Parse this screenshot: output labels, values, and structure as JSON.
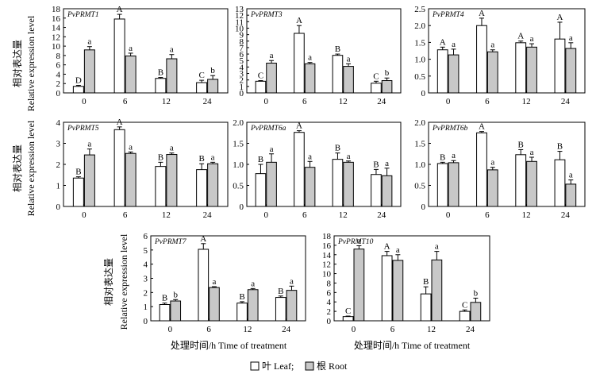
{
  "chart_data": [
    {
      "type": "bar",
      "gene": "PvPRMT1",
      "categories": [
        "0",
        "6",
        "12",
        "24"
      ],
      "yticks": [
        "0",
        "2",
        "4",
        "6",
        "8",
        "10",
        "12",
        "14",
        "16",
        "18"
      ],
      "ylim": [
        0,
        18
      ],
      "series": [
        {
          "name": "叶 Leaf",
          "values": [
            1.4,
            15.8,
            3.1,
            2.2
          ],
          "errors": [
            0.2,
            1.0,
            0.2,
            0.5
          ],
          "letters": [
            "D",
            "A",
            "B",
            "C"
          ]
        },
        {
          "name": "根 Root",
          "values": [
            9.2,
            7.9,
            7.3,
            2.9
          ],
          "errors": [
            0.7,
            0.6,
            0.9,
            0.8
          ],
          "letters": [
            "a",
            "a",
            "a",
            "b"
          ]
        }
      ]
    },
    {
      "type": "bar",
      "gene": "PvPRMT3",
      "categories": [
        "0",
        "6",
        "12",
        "24"
      ],
      "yticks": [
        "0",
        "1",
        "2",
        "3",
        "4",
        "5",
        "6",
        "7",
        "8",
        "9",
        "10",
        "11",
        "12",
        "13"
      ],
      "ylim": [
        0,
        13
      ],
      "series": [
        {
          "name": "叶 Leaf",
          "values": [
            1.8,
            9.2,
            5.8,
            1.5
          ],
          "errors": [
            0.1,
            1.2,
            0.2,
            0.3
          ],
          "letters": [
            "C",
            "A",
            "B",
            "C"
          ]
        },
        {
          "name": "根 Root",
          "values": [
            4.6,
            4.5,
            4.1,
            1.9
          ],
          "errors": [
            0.4,
            0.2,
            0.4,
            0.4
          ],
          "letters": [
            "a",
            "a",
            "a",
            "b"
          ]
        }
      ]
    },
    {
      "type": "bar",
      "gene": "PvPRMT4",
      "categories": [
        "0",
        "6",
        "12",
        "24"
      ],
      "yticks": [
        "0",
        "0.5",
        "1.0",
        "1.5",
        "2.0",
        "2.5"
      ],
      "ylim": [
        0,
        2.5
      ],
      "series": [
        {
          "name": "叶 Leaf",
          "values": [
            1.28,
            2.0,
            1.49,
            1.6
          ],
          "errors": [
            0.08,
            0.22,
            0.05,
            0.5
          ],
          "letters": [
            "A",
            "A",
            "A",
            "A"
          ]
        },
        {
          "name": "根 Root",
          "values": [
            1.13,
            1.22,
            1.36,
            1.32
          ],
          "errors": [
            0.17,
            0.06,
            0.1,
            0.17
          ],
          "letters": [
            "a",
            "a",
            "a",
            "a"
          ]
        }
      ]
    },
    {
      "type": "bar",
      "gene": "PvPRMT5",
      "categories": [
        "0",
        "6",
        "12",
        "24"
      ],
      "yticks": [
        "0",
        "1",
        "2",
        "3",
        "4"
      ],
      "ylim": [
        0,
        4
      ],
      "series": [
        {
          "name": "叶 Leaf",
          "values": [
            1.35,
            3.65,
            1.9,
            1.75
          ],
          "errors": [
            0.06,
            0.13,
            0.2,
            0.28
          ],
          "letters": [
            "B",
            "A",
            "B",
            "B"
          ]
        },
        {
          "name": "根 Root",
          "values": [
            2.45,
            2.52,
            2.47,
            2.03
          ],
          "errors": [
            0.28,
            0.07,
            0.07,
            0.07
          ],
          "letters": [
            "a",
            "a",
            "a",
            "a"
          ]
        }
      ]
    },
    {
      "type": "bar",
      "gene": "PvPRMT6a",
      "categories": [
        "0",
        "6",
        "12",
        "24"
      ],
      "yticks": [
        "0",
        "0.5",
        "1.0",
        "1.5",
        "2.0"
      ],
      "ylim": [
        0,
        2.0
      ],
      "series": [
        {
          "name": "叶 Leaf",
          "values": [
            0.78,
            1.76,
            1.12,
            0.76
          ],
          "errors": [
            0.22,
            0.04,
            0.15,
            0.12
          ],
          "letters": [
            "B",
            "A",
            "B",
            "B"
          ]
        },
        {
          "name": "根 Root",
          "values": [
            1.05,
            0.93,
            1.05,
            0.73
          ],
          "errors": [
            0.2,
            0.14,
            0.03,
            0.18
          ],
          "letters": [
            "a",
            "a",
            "a",
            "a"
          ]
        }
      ]
    },
    {
      "type": "bar",
      "gene": "PvPRMT6b",
      "categories": [
        "0",
        "6",
        "12",
        "24"
      ],
      "yticks": [
        "0",
        "0.5",
        "1.0",
        "1.5",
        "2.0"
      ],
      "ylim": [
        0,
        2.0
      ],
      "series": [
        {
          "name": "叶 Leaf",
          "values": [
            1.02,
            1.75,
            1.23,
            1.11
          ],
          "errors": [
            0.03,
            0.03,
            0.12,
            0.2
          ],
          "letters": [
            "B",
            "A",
            "B",
            "B"
          ]
        },
        {
          "name": "根 Root",
          "values": [
            1.04,
            0.87,
            1.07,
            0.53
          ],
          "errors": [
            0.05,
            0.06,
            0.1,
            0.1
          ],
          "letters": [
            "a",
            "a",
            "a",
            "a"
          ]
        }
      ]
    },
    {
      "type": "bar",
      "gene": "PvPRMT7",
      "categories": [
        "0",
        "6",
        "12",
        "24"
      ],
      "yticks": [
        "0",
        "1",
        "2",
        "3",
        "4",
        "5",
        "6"
      ],
      "ylim": [
        0,
        6
      ],
      "series": [
        {
          "name": "叶 Leaf",
          "values": [
            1.15,
            5.05,
            1.25,
            1.65
          ],
          "errors": [
            0.1,
            0.4,
            0.1,
            0.1
          ],
          "letters": [
            "B",
            "A",
            "B",
            "B"
          ]
        },
        {
          "name": "根 Root",
          "values": [
            1.4,
            2.35,
            2.2,
            2.15
          ],
          "errors": [
            0.1,
            0.06,
            0.08,
            0.3
          ],
          "letters": [
            "b",
            "a",
            "a",
            "a"
          ]
        }
      ]
    },
    {
      "type": "bar",
      "gene": "PvPRMT10",
      "categories": [
        "0",
        "6",
        "12",
        "24"
      ],
      "yticks": [
        "0",
        "2",
        "4",
        "6",
        "8",
        "10",
        "12",
        "14",
        "16",
        "18"
      ],
      "ylim": [
        0,
        18
      ],
      "series": [
        {
          "name": "叶 Leaf",
          "values": [
            0.9,
            13.8,
            5.7,
            2.0
          ],
          "errors": [
            0.1,
            0.9,
            1.5,
            0.3
          ],
          "letters": [
            "C",
            "A",
            "B",
            "C"
          ]
        },
        {
          "name": "根 Root",
          "values": [
            15.2,
            12.8,
            12.9,
            3.9
          ],
          "errors": [
            0.7,
            1.2,
            1.8,
            0.9
          ],
          "letters": [
            "a",
            "a",
            "a",
            "b"
          ]
        }
      ]
    }
  ],
  "labels": {
    "ylabel_cn": "相对表达量",
    "ylabel_en": "Relative expression level",
    "xlabel": "处理时间/h   Time of treatment"
  },
  "legend": {
    "leaf": "叶 Leaf;",
    "root": "根 Root"
  },
  "colors": {
    "leaf": "#ffffff",
    "root": "#c8c8c8",
    "stroke": "#000000"
  }
}
